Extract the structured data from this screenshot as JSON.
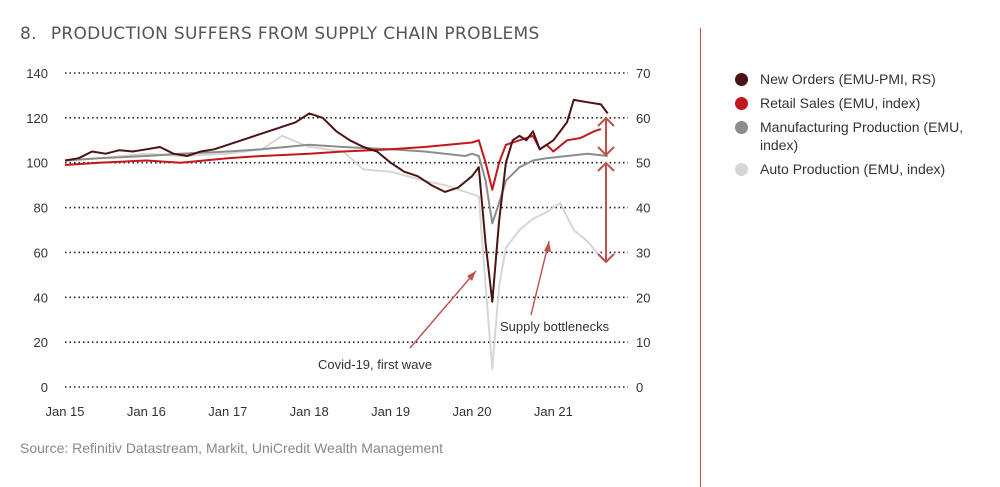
{
  "header": {
    "number": "8.",
    "title": "PRODUCTION SUFFERS FROM SUPPLY CHAIN PROBLEMS"
  },
  "source": "Source: Refinitiv Datastream, Markit, UniCredit Wealth Management",
  "colors": {
    "new_orders": "#4a1414",
    "retail_sales": "#c4161c",
    "manufacturing": "#8c8c8c",
    "auto": "#d6d6d6",
    "accent": "#c0504d"
  },
  "chart_data": {
    "type": "line",
    "title": "PRODUCTION SUFFERS FROM SUPPLY CHAIN PROBLEMS",
    "x_ticks": [
      "Jan 15",
      "Jan 16",
      "Jan 17",
      "Jan 18",
      "Jan 19",
      "Jan 20",
      "Jan 21"
    ],
    "y_left": {
      "ticks": [
        0,
        20,
        40,
        60,
        80,
        100,
        120,
        140
      ],
      "range": [
        0,
        140
      ]
    },
    "y_right": {
      "ticks": [
        0,
        10,
        20,
        30,
        40,
        50,
        60,
        70
      ],
      "range": [
        0,
        70
      ]
    },
    "x_range": [
      "2015-01",
      "2021-12"
    ],
    "grid": "dotted horizontal",
    "legend_position": "right",
    "annotations": [
      {
        "text": "Covid-19, first wave",
        "points_to": "2020-04"
      },
      {
        "text": "Supply bottlenecks",
        "points_to": "2021-03"
      }
    ],
    "series": [
      {
        "name": "New Orders (EMU-PMI, RS)",
        "axis": "right",
        "color_key": "new_orders",
        "points": [
          [
            "2015-01",
            50.5
          ],
          [
            "2015-03",
            51
          ],
          [
            "2015-05",
            52.5
          ],
          [
            "2015-07",
            52
          ],
          [
            "2015-09",
            52.8
          ],
          [
            "2015-11",
            52.5
          ],
          [
            "2016-01",
            53
          ],
          [
            "2016-03",
            53.5
          ],
          [
            "2016-05",
            52
          ],
          [
            "2016-07",
            51.5
          ],
          [
            "2016-09",
            52.5
          ],
          [
            "2016-11",
            53
          ],
          [
            "2017-01",
            54
          ],
          [
            "2017-03",
            55
          ],
          [
            "2017-05",
            56
          ],
          [
            "2017-07",
            57
          ],
          [
            "2017-09",
            58
          ],
          [
            "2017-11",
            59
          ],
          [
            "2018-01",
            61
          ],
          [
            "2018-03",
            60
          ],
          [
            "2018-05",
            57
          ],
          [
            "2018-07",
            55
          ],
          [
            "2018-09",
            53.5
          ],
          [
            "2018-11",
            52.5
          ],
          [
            "2019-01",
            50
          ],
          [
            "2019-03",
            48
          ],
          [
            "2019-05",
            47
          ],
          [
            "2019-07",
            45
          ],
          [
            "2019-09",
            43.5
          ],
          [
            "2019-11",
            44.5
          ],
          [
            "2020-01",
            47
          ],
          [
            "2020-02",
            49
          ],
          [
            "2020-03",
            32
          ],
          [
            "2020-04",
            19
          ],
          [
            "2020-05",
            37
          ],
          [
            "2020-06",
            50
          ],
          [
            "2020-07",
            55
          ],
          [
            "2020-08",
            56
          ],
          [
            "2020-09",
            55
          ],
          [
            "2020-10",
            57
          ],
          [
            "2020-11",
            53
          ],
          [
            "2020-12",
            54
          ],
          [
            "2021-01",
            55
          ],
          [
            "2021-03",
            59
          ],
          [
            "2021-04",
            64
          ],
          [
            "2021-06",
            63.5
          ],
          [
            "2021-08",
            63
          ],
          [
            "2021-09",
            61
          ]
        ]
      },
      {
        "name": "Retail Sales (EMU, index)",
        "axis": "left",
        "color_key": "retail_sales",
        "points": [
          [
            "2015-01",
            99
          ],
          [
            "2015-06",
            100
          ],
          [
            "2016-01",
            101
          ],
          [
            "2016-06",
            100
          ],
          [
            "2017-01",
            102
          ],
          [
            "2017-06",
            103
          ],
          [
            "2018-01",
            104
          ],
          [
            "2018-06",
            105
          ],
          [
            "2019-01",
            106
          ],
          [
            "2019-06",
            107
          ],
          [
            "2020-01",
            109
          ],
          [
            "2020-02",
            110
          ],
          [
            "2020-03",
            100
          ],
          [
            "2020-04",
            88
          ],
          [
            "2020-05",
            100
          ],
          [
            "2020-06",
            108
          ],
          [
            "2020-08",
            110
          ],
          [
            "2020-10",
            112
          ],
          [
            "2020-11",
            106
          ],
          [
            "2020-12",
            108
          ],
          [
            "2021-01",
            105
          ],
          [
            "2021-03",
            110
          ],
          [
            "2021-05",
            111
          ],
          [
            "2021-07",
            114
          ],
          [
            "2021-08",
            115
          ]
        ]
      },
      {
        "name": "Manufacturing Production (EMU, index)",
        "axis": "left",
        "color_key": "manufacturing",
        "points": [
          [
            "2015-01",
            101
          ],
          [
            "2015-06",
            102
          ],
          [
            "2016-01",
            103
          ],
          [
            "2016-06",
            104
          ],
          [
            "2017-01",
            105
          ],
          [
            "2017-06",
            106
          ],
          [
            "2018-01",
            108
          ],
          [
            "2018-06",
            107
          ],
          [
            "2019-01",
            106
          ],
          [
            "2019-06",
            105
          ],
          [
            "2019-12",
            103
          ],
          [
            "2020-01",
            104
          ],
          [
            "2020-02",
            103
          ],
          [
            "2020-03",
            92
          ],
          [
            "2020-04",
            73
          ],
          [
            "2020-05",
            82
          ],
          [
            "2020-06",
            92
          ],
          [
            "2020-08",
            98
          ],
          [
            "2020-10",
            101
          ],
          [
            "2020-12",
            102
          ],
          [
            "2021-03",
            103
          ],
          [
            "2021-06",
            104
          ],
          [
            "2021-09",
            103
          ]
        ]
      },
      {
        "name": "Auto Production (EMU, index)",
        "axis": "left",
        "color_key": "auto",
        "points": [
          [
            "2015-01",
            101
          ],
          [
            "2015-06",
            102
          ],
          [
            "2016-01",
            104
          ],
          [
            "2016-06",
            103
          ],
          [
            "2017-01",
            104
          ],
          [
            "2017-06",
            106
          ],
          [
            "2017-09",
            112
          ],
          [
            "2018-01",
            107
          ],
          [
            "2018-06",
            105
          ],
          [
            "2018-09",
            97
          ],
          [
            "2019-01",
            96
          ],
          [
            "2019-06",
            92
          ],
          [
            "2019-09",
            90
          ],
          [
            "2020-01",
            86
          ],
          [
            "2020-02",
            85
          ],
          [
            "2020-03",
            45
          ],
          [
            "2020-04",
            8
          ],
          [
            "2020-05",
            45
          ],
          [
            "2020-06",
            62
          ],
          [
            "2020-08",
            70
          ],
          [
            "2020-10",
            75
          ],
          [
            "2020-12",
            78
          ],
          [
            "2021-02",
            82
          ],
          [
            "2021-04",
            70
          ],
          [
            "2021-06",
            65
          ],
          [
            "2021-08",
            58
          ]
        ]
      }
    ]
  }
}
